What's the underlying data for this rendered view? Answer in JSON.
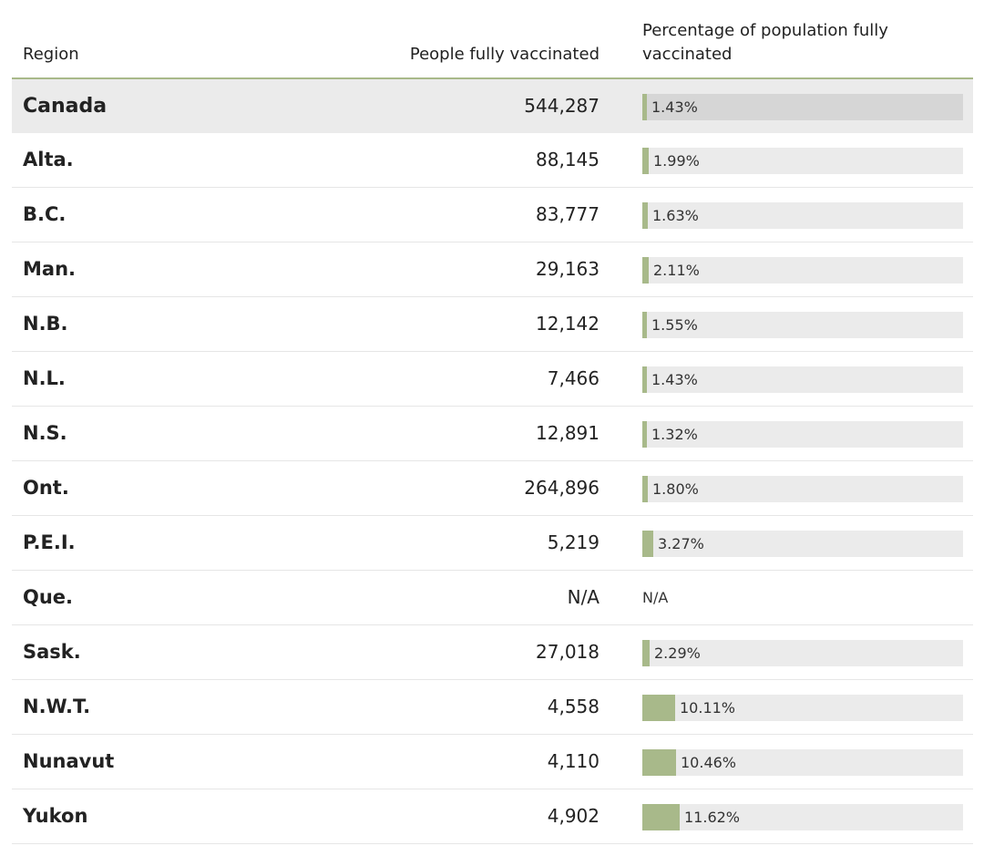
{
  "table": {
    "headers": {
      "region": "Region",
      "people": "People fully vaccinated",
      "percentage": "Percentage of population fully vaccinated"
    }
  },
  "chart_data": {
    "type": "table",
    "columns": [
      "Region",
      "People fully vaccinated",
      "Percentage of population fully vaccinated"
    ],
    "bar_color": "#a8b98a",
    "rows": [
      {
        "region": "Canada",
        "people": "544,287",
        "percent_label": "1.43%",
        "percent": 1.43,
        "total": true
      },
      {
        "region": "Alta.",
        "people": "88,145",
        "percent_label": "1.99%",
        "percent": 1.99
      },
      {
        "region": "B.C.",
        "people": "83,777",
        "percent_label": "1.63%",
        "percent": 1.63
      },
      {
        "region": "Man.",
        "people": "29,163",
        "percent_label": "2.11%",
        "percent": 2.11
      },
      {
        "region": "N.B.",
        "people": "12,142",
        "percent_label": "1.55%",
        "percent": 1.55
      },
      {
        "region": "N.L.",
        "people": "7,466",
        "percent_label": "1.43%",
        "percent": 1.43
      },
      {
        "region": "N.S.",
        "people": "12,891",
        "percent_label": "1.32%",
        "percent": 1.32
      },
      {
        "region": "Ont.",
        "people": "264,896",
        "percent_label": "1.80%",
        "percent": 1.8
      },
      {
        "region": "P.E.I.",
        "people": "5,219",
        "percent_label": "3.27%",
        "percent": 3.27
      },
      {
        "region": "Que.",
        "people": "N/A",
        "percent_label": "N/A",
        "percent": null
      },
      {
        "region": "Sask.",
        "people": "27,018",
        "percent_label": "2.29%",
        "percent": 2.29
      },
      {
        "region": "N.W.T.",
        "people": "4,558",
        "percent_label": "10.11%",
        "percent": 10.11
      },
      {
        "region": "Nunavut",
        "people": "4,110",
        "percent_label": "10.46%",
        "percent": 10.46
      },
      {
        "region": "Yukon",
        "people": "4,902",
        "percent_label": "11.62%",
        "percent": 11.62
      }
    ]
  }
}
